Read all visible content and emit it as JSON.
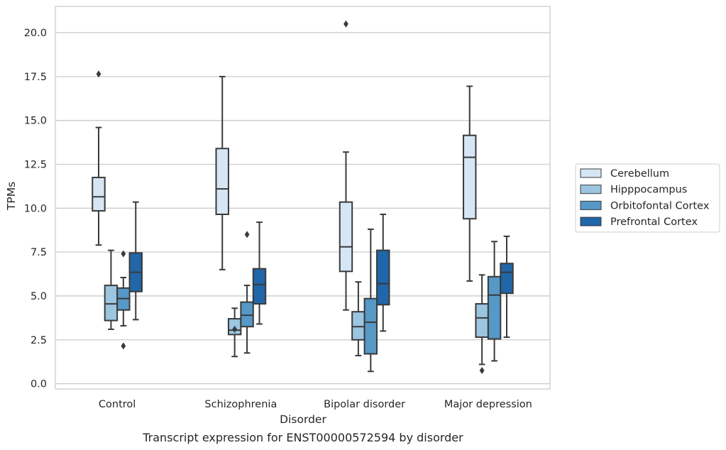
{
  "chart_data": {
    "type": "boxplot",
    "caption": "Transcript expression for ENST00000572594 by disorder",
    "xlabel": "Disorder",
    "ylabel": "TPMs",
    "ylim": [
      -0.3,
      21.5
    ],
    "yticks": [
      "0.0",
      "2.5",
      "5.0",
      "7.5",
      "10.0",
      "12.5",
      "15.0",
      "17.5",
      "20.0"
    ],
    "grid": true,
    "legend_position": "right",
    "categories": [
      "Control",
      "Schizophrenia",
      "Bipolar disorder",
      "Major depression"
    ],
    "series": [
      {
        "name": "Cerebellum",
        "color": "#d6e6f4",
        "boxes": [
          {
            "whisker_low": 7.9,
            "q1": 9.85,
            "median": 10.65,
            "q3": 11.75,
            "whisker_high": 14.6,
            "outliers": [
              17.65
            ]
          },
          {
            "whisker_low": 6.5,
            "q1": 9.65,
            "median": 11.1,
            "q3": 13.4,
            "whisker_high": 17.5,
            "outliers": []
          },
          {
            "whisker_low": 4.2,
            "q1": 6.4,
            "median": 7.8,
            "q3": 10.35,
            "whisker_high": 13.2,
            "outliers": [
              20.5
            ]
          },
          {
            "whisker_low": 5.85,
            "q1": 9.4,
            "median": 12.9,
            "q3": 14.15,
            "whisker_high": 16.95,
            "outliers": []
          }
        ]
      },
      {
        "name": "Hipppocampus",
        "color": "#9cc5e0",
        "boxes": [
          {
            "whisker_low": 3.1,
            "q1": 3.6,
            "median": 4.55,
            "q3": 5.6,
            "whisker_high": 7.6,
            "outliers": []
          },
          {
            "whisker_low": 1.55,
            "q1": 2.8,
            "median": 3.05,
            "q3": 3.7,
            "whisker_high": 4.3,
            "outliers": [
              3.1
            ]
          },
          {
            "whisker_low": 1.6,
            "q1": 2.5,
            "median": 3.25,
            "q3": 4.1,
            "whisker_high": 5.8,
            "outliers": []
          },
          {
            "whisker_low": 1.1,
            "q1": 2.65,
            "median": 3.75,
            "q3": 4.55,
            "whisker_high": 6.2,
            "outliers": [
              0.75
            ]
          }
        ]
      },
      {
        "name": "Orbitofontal Cortex",
        "color": "#5698c6",
        "boxes": [
          {
            "whisker_low": 3.3,
            "q1": 4.2,
            "median": 4.85,
            "q3": 5.45,
            "whisker_high": 6.05,
            "outliers": [
              7.4,
              2.15
            ]
          },
          {
            "whisker_low": 1.75,
            "q1": 3.25,
            "median": 3.9,
            "q3": 4.65,
            "whisker_high": 5.6,
            "outliers": [
              8.5
            ]
          },
          {
            "whisker_low": 0.7,
            "q1": 1.7,
            "median": 3.5,
            "q3": 4.85,
            "whisker_high": 8.8,
            "outliers": []
          },
          {
            "whisker_low": 1.3,
            "q1": 2.55,
            "median": 5.05,
            "q3": 6.1,
            "whisker_high": 8.1,
            "outliers": []
          }
        ]
      },
      {
        "name": "Prefrontal Cortex",
        "color": "#2166a8",
        "boxes": [
          {
            "whisker_low": 3.65,
            "q1": 5.25,
            "median": 6.35,
            "q3": 7.45,
            "whisker_high": 10.35,
            "outliers": []
          },
          {
            "whisker_low": 3.4,
            "q1": 4.55,
            "median": 5.65,
            "q3": 6.55,
            "whisker_high": 9.2,
            "outliers": []
          },
          {
            "whisker_low": 3.0,
            "q1": 4.5,
            "median": 5.7,
            "q3": 7.6,
            "whisker_high": 9.65,
            "outliers": []
          },
          {
            "whisker_low": 2.65,
            "q1": 5.15,
            "median": 6.35,
            "q3": 6.85,
            "whisker_high": 8.4,
            "outliers": []
          }
        ]
      }
    ]
  }
}
